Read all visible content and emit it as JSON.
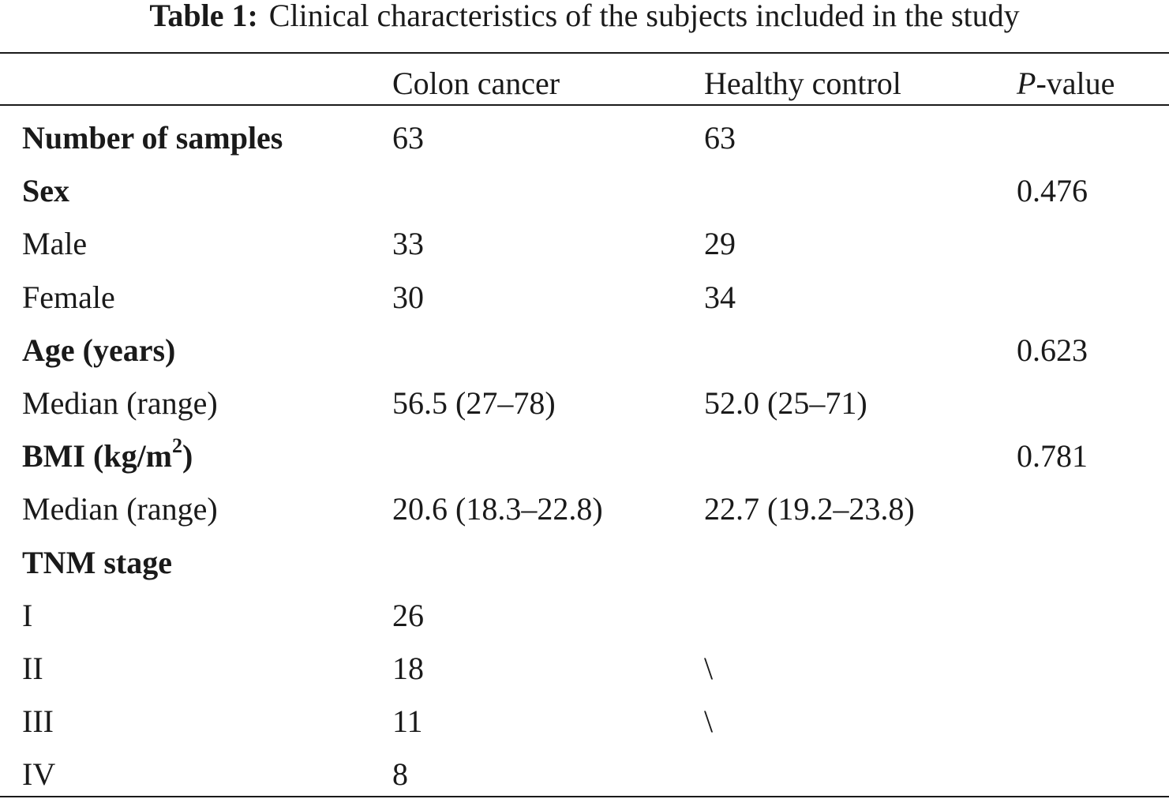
{
  "caption": {
    "label": "Table 1:",
    "text": "Clinical characteristics of the subjects included in the study"
  },
  "header": {
    "col0": "",
    "col1": "Colon cancer",
    "col2": "Healthy control",
    "col3_italic": "P",
    "col3_rest": "-value"
  },
  "rows": [
    {
      "label": "Number of samples",
      "bold": true,
      "colon": "63",
      "healthy": "63",
      "p": ""
    },
    {
      "label": "Sex",
      "bold": true,
      "colon": "",
      "healthy": "",
      "p": "0.476"
    },
    {
      "label": "Male",
      "bold": false,
      "colon": "33",
      "healthy": "29",
      "p": ""
    },
    {
      "label": "Female",
      "bold": false,
      "colon": "30",
      "healthy": "34",
      "p": ""
    },
    {
      "label": "Age (years)",
      "bold": true,
      "colon": "",
      "healthy": "",
      "p": "0.623"
    },
    {
      "label": "Median (range)",
      "bold": false,
      "colon": "56.5 (27–78)",
      "healthy": "52.0 (25–71)",
      "p": ""
    },
    {
      "label": "BMI (kg/m",
      "label_sup": "2",
      "label_after": ")",
      "bold": true,
      "colon": "",
      "healthy": "",
      "p": "0.781"
    },
    {
      "label": "Median (range)",
      "bold": false,
      "colon": "20.6 (18.3–22.8)",
      "healthy": "22.7 (19.2–23.8)",
      "p": ""
    },
    {
      "label": "TNM stage",
      "bold": true,
      "colon": "",
      "healthy": "",
      "p": ""
    },
    {
      "label": "I",
      "bold": false,
      "colon": "26",
      "healthy": "",
      "p": ""
    },
    {
      "label": "II",
      "bold": false,
      "colon": "18",
      "healthy": "\\",
      "p": ""
    },
    {
      "label": "III",
      "bold": false,
      "colon": "11",
      "healthy": "\\",
      "p": ""
    },
    {
      "label": "IV",
      "bold": false,
      "colon": "8",
      "healthy": "",
      "p": ""
    }
  ]
}
